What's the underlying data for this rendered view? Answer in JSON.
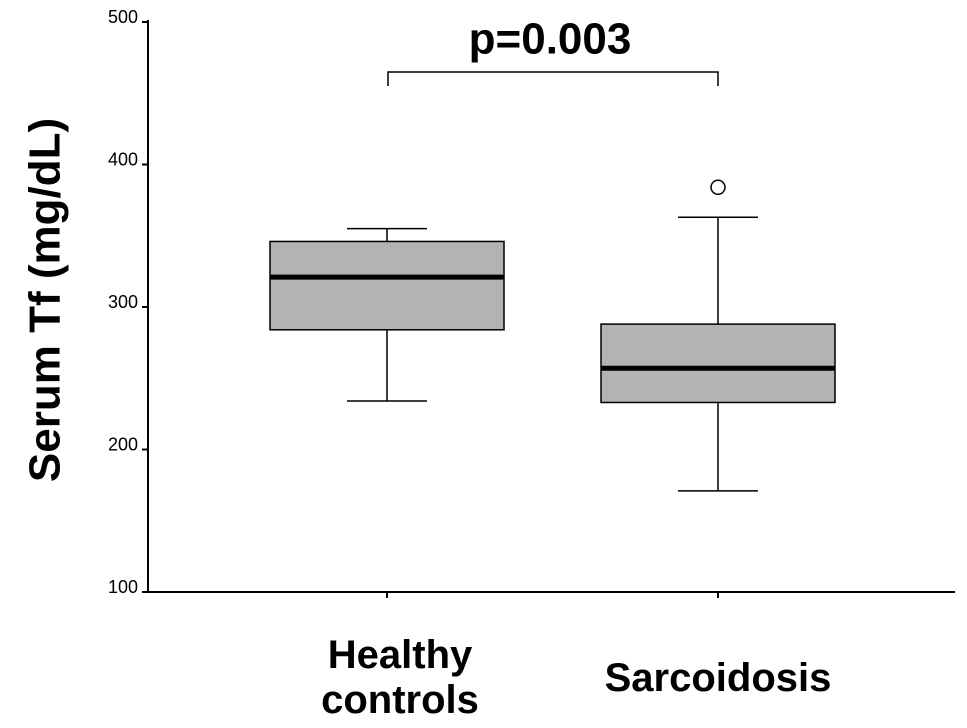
{
  "chart_data": {
    "type": "box",
    "y_label": "Serum Tf (mg/dL)",
    "annotation": "p=0.003",
    "categories": [
      "Healthy controls",
      "Sarcoidosis"
    ],
    "boxes": [
      {
        "whisker_low": 234,
        "q1": 284,
        "median": 321,
        "q3": 346,
        "whisker_high": 355
      },
      {
        "whisker_low": 171,
        "q1": 233,
        "median": 257,
        "q3": 288,
        "whisker_high": 363,
        "outliers": [
          384
        ]
      }
    ],
    "color": "#b3b3b3",
    "ylim": [
      100,
      500
    ],
    "yticks": [
      100,
      200,
      300,
      400,
      500
    ]
  }
}
